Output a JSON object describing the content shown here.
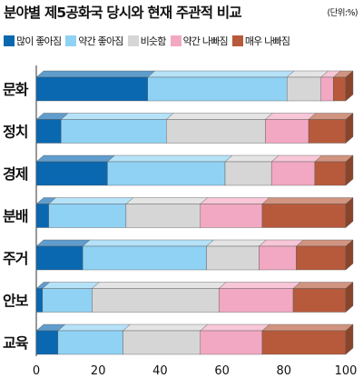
{
  "title": "분야별 제5공화국 당시와 현재 주관적 비교",
  "unit": "(단위:%)",
  "chart_data": {
    "type": "bar",
    "orientation": "horizontal",
    "stacked": true,
    "categories": [
      "문화",
      "정치",
      "경제",
      "분배",
      "주거",
      "안보",
      "교육"
    ],
    "series": [
      {
        "name": "많이 좋아짐",
        "color": "#0a68b0",
        "values": [
          36,
          8,
          23,
          4,
          15,
          2,
          7
        ]
      },
      {
        "name": "약간 좋아짐",
        "color": "#8fd2f4",
        "values": [
          45,
          34,
          38,
          25,
          40,
          16,
          21
        ]
      },
      {
        "name": "비슷함",
        "color": "#d6d6d6",
        "values": [
          11,
          32,
          15,
          24,
          17,
          41,
          25
        ]
      },
      {
        "name": "약간 나빠짐",
        "color": "#f2a8c2",
        "values": [
          4,
          14,
          14,
          20,
          12,
          24,
          20
        ]
      },
      {
        "name": "매우 나빠짐",
        "color": "#b75a3b",
        "values": [
          4,
          12,
          10,
          27,
          16,
          17,
          27
        ]
      }
    ],
    "xticks": [
      0,
      20,
      40,
      60,
      80,
      100
    ],
    "xlim": [
      0,
      100
    ],
    "grid": false,
    "legend": "top"
  }
}
